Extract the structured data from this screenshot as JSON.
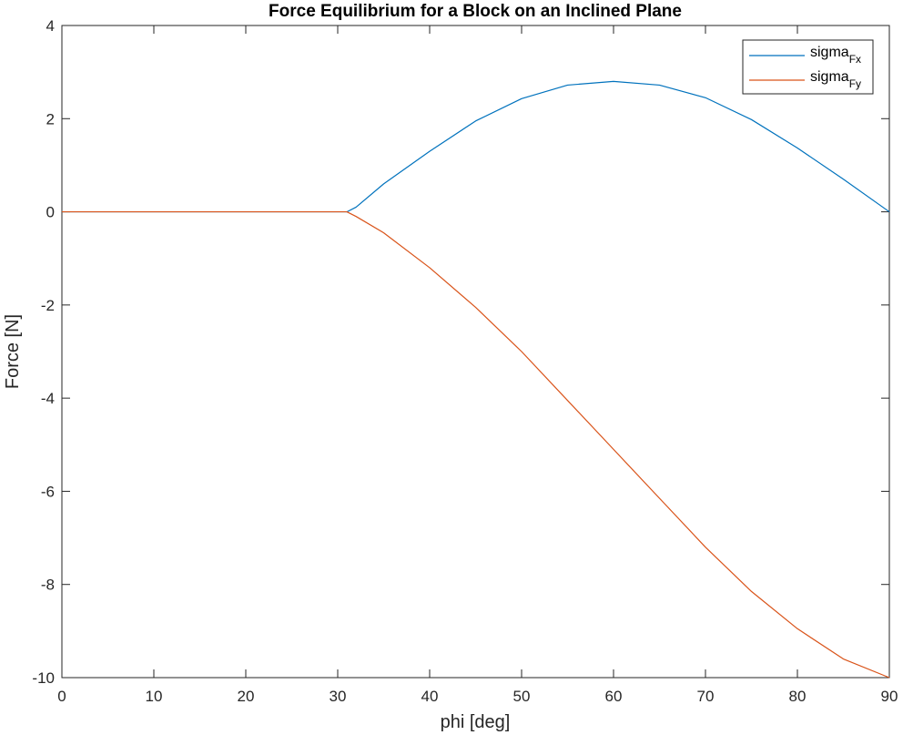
{
  "chart_data": {
    "type": "line",
    "title": "Force Equilibrium for a Block on an Inclined Plane",
    "xlabel": "phi [deg]",
    "ylabel": "Force [N]",
    "xlim": [
      0,
      90
    ],
    "ylim": [
      -10,
      4
    ],
    "xticks": [
      0,
      10,
      20,
      30,
      40,
      50,
      60,
      70,
      80,
      90
    ],
    "yticks": [
      -10,
      -8,
      -6,
      -4,
      -2,
      0,
      2,
      4
    ],
    "grid": false,
    "legend_position": "top-right",
    "series": [
      {
        "name": "sigma",
        "name_subscript": "Fx",
        "color": "#0072BD",
        "x": [
          0,
          10,
          20,
          30,
          31,
          32,
          35,
          40,
          45,
          50,
          55,
          60,
          65,
          70,
          75,
          80,
          85,
          90
        ],
        "y": [
          0,
          0,
          0,
          0,
          0,
          0.1,
          0.6,
          1.3,
          1.95,
          2.43,
          2.72,
          2.8,
          2.72,
          2.45,
          1.98,
          1.37,
          0.7,
          0
        ]
      },
      {
        "name": "sigma",
        "name_subscript": "Fy",
        "color": "#D95319",
        "x": [
          0,
          10,
          20,
          30,
          31,
          32,
          35,
          40,
          45,
          50,
          55,
          60,
          65,
          70,
          75,
          80,
          85,
          90
        ],
        "y": [
          0,
          0,
          0,
          0,
          0,
          -0.1,
          -0.45,
          -1.2,
          -2.05,
          -3.0,
          -4.05,
          -5.1,
          -6.15,
          -7.2,
          -8.15,
          -8.95,
          -9.6,
          -10
        ]
      }
    ]
  }
}
